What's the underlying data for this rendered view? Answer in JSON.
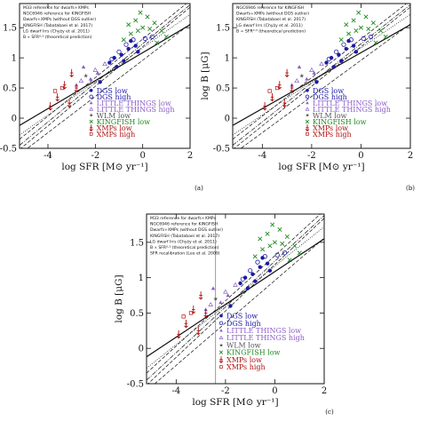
{
  "chart_data": [
    {
      "panel": "(a)",
      "type": "scatter",
      "xlabel": "log SFR [M⊙ yr⁻¹]",
      "ylabel": "",
      "xlim": [
        -5.2,
        2.0
      ],
      "ylim": [
        -0.5,
        1.9
      ],
      "xticks": [
        -4,
        -2,
        0,
        2
      ],
      "yticks": [
        -0.5,
        0,
        0.5,
        1,
        1.5
      ],
      "ref_lines": [
        {
          "name": "M33 reference for dwarfs+XMPs",
          "style": "dashed",
          "x": [
            -5.2,
            2.0
          ],
          "y": [
            -0.35,
            1.95
          ]
        },
        {
          "name": "NGC6946 reference for KINGFISH",
          "style": "dashed",
          "x": [
            -5.2,
            2.0
          ],
          "y": [
            -0.52,
            1.84
          ]
        },
        {
          "name": "Dwarfs+XMPs (without DGS outlier)",
          "style": "solid",
          "x": [
            -5.2,
            2.0
          ],
          "y": [
            -0.12,
            1.55
          ]
        },
        {
          "name": "KINGFISH (Tabatabaei et al. 2017)",
          "style": "dotted",
          "x": [
            -5.2,
            2.0
          ],
          "y": [
            -0.28,
            1.72
          ]
        },
        {
          "name": "LG dwarf Irrs (Chyży et al. 2011)",
          "style": "dashdot",
          "x": [
            -5.2,
            2.0
          ],
          "y": [
            -0.45,
            1.88
          ]
        },
        {
          "name": "B ∝ SFR⁰·³ (theoretical prediction)",
          "style": "dashed",
          "x": [
            -5.2,
            2.0
          ],
          "y": [
            -0.6,
            1.56
          ]
        }
      ],
      "series": [
        {
          "name": "DGS low",
          "color": "#1a1aa6",
          "marker": "filled-circle",
          "points": [
            [
              -1.4,
              0.92
            ],
            [
              -1.2,
              1.0
            ],
            [
              -0.9,
              1.05
            ],
            [
              -1.1,
              0.85
            ],
            [
              -0.6,
              1.15
            ],
            [
              -0.3,
              1.2
            ],
            [
              -0.5,
              1.28
            ],
            [
              -1.8,
              0.6
            ],
            [
              -0.2,
              1.1
            ],
            [
              -0.8,
              0.95
            ]
          ]
        },
        {
          "name": "DGS high",
          "color": "#1a1aa6",
          "marker": "open-circle",
          "points": [
            [
              -1.0,
              1.1
            ],
            [
              -0.7,
              1.22
            ],
            [
              -0.4,
              1.3
            ],
            [
              0.1,
              1.32
            ],
            [
              -1.3,
              0.98
            ],
            [
              0.4,
              1.35
            ]
          ]
        },
        {
          "name": "LITTLE THINGS low",
          "color": "#8a5cc7",
          "marker": "filled-triangle",
          "points": [
            [
              -2.2,
              0.65
            ],
            [
              -2.8,
              0.55
            ],
            [
              -1.9,
              0.75
            ],
            [
              -2.5,
              0.85
            ]
          ]
        },
        {
          "name": "LITTLE THINGS high",
          "color": "#8a5cc7",
          "marker": "open-triangle",
          "points": [
            [
              -2.0,
              0.8
            ],
            [
              -2.6,
              0.62
            ],
            [
              -1.6,
              0.9
            ]
          ]
        },
        {
          "name": "WLM low",
          "color": "#555555",
          "marker": "star",
          "points": [
            [
              -2.4,
              0.7
            ]
          ]
        },
        {
          "name": "KINGFISH low",
          "color": "#1f8a1f",
          "marker": "cross",
          "points": [
            [
              -0.6,
              1.55
            ],
            [
              -0.3,
              1.62
            ],
            [
              0.0,
              1.5
            ],
            [
              0.3,
              1.48
            ],
            [
              -0.8,
              1.3
            ],
            [
              0.5,
              1.58
            ],
            [
              0.8,
              1.45
            ],
            [
              -0.1,
              1.75
            ],
            [
              0.2,
              1.68
            ],
            [
              -0.5,
              1.4
            ],
            [
              1.0,
              1.35
            ],
            [
              0.6,
              1.25
            ],
            [
              -0.2,
              1.45
            ]
          ]
        },
        {
          "name": "XMPs low",
          "color": "#b01010",
          "marker": "upper-limit",
          "points": [
            [
              -3.6,
              0.35
            ],
            [
              -3.3,
              0.55
            ],
            [
              -3.0,
              0.75
            ],
            [
              -2.8,
              0.5
            ],
            [
              -3.9,
              0.2
            ],
            [
              -3.1,
              0.25
            ]
          ]
        },
        {
          "name": "XMPs high",
          "color": "#b01010",
          "marker": "open-square",
          "points": [
            [
              -3.4,
              0.5
            ],
            [
              -3.7,
              0.45
            ]
          ]
        }
      ],
      "legend": "bottom-right"
    },
    {
      "panel": "(b)",
      "type": "scatter",
      "xlabel": "log SFR [M⊙ yr⁻¹]",
      "ylabel": "log B [μG]",
      "xlim": [
        -5.2,
        2.0
      ],
      "ylim": [
        -0.5,
        1.9
      ],
      "xticks": [
        -4,
        -2,
        0,
        2
      ],
      "yticks": [
        -0.5,
        0,
        0.5,
        1,
        1.5
      ],
      "legend": "bottom-right"
    },
    {
      "panel": "(c)",
      "type": "scatter",
      "xlabel": "log SFR [M⊙ yr⁻¹]",
      "ylabel": "log B [μG]",
      "xlim": [
        -5.2,
        2.0
      ],
      "ylim": [
        -0.5,
        1.9
      ],
      "xticks": [
        -4,
        -2,
        0,
        2
      ],
      "yticks": [
        -0.5,
        0,
        0.5,
        1,
        1.5
      ],
      "legend": "bottom-right"
    }
  ],
  "figure": {
    "legends": {
      "a": {
        "lines": [
          "M33 reference for dwarfs+XMPs",
          "NGC6946 reference for KINGFISH",
          "Dwarfs+XMPs (without DGS outlier)",
          "KINGFISH (Tabatabaei et al. 2017)",
          "LG dwarf Irrs (Chyży et al. 2011)",
          "B ∝ SFR⁰·³ (theoretical prediction)"
        ],
        "markers": [
          "DGS low",
          "DGS high",
          "LITTLE THINGS low",
          "LITTLE THINGS high",
          "WLM low",
          "KINGFISH low",
          "XMPs low",
          "XMPs high"
        ]
      },
      "b": {
        "lines": [
          "NGC6946 reference for KINGFISH",
          "Dwarfs+XMPs (without DGS outlier)",
          "KINGFISH (Tabatabaei et al. 2017)",
          "LG dwarf Irrs (Chyży et al. 2011)",
          "B = SFR⁰·³ (theoretical prediction)"
        ],
        "markers": [
          "DGS low",
          "DGS high",
          "LITTLE THINGS low",
          "LITTLE THINGS high",
          "WLM low",
          "KINGFISH low",
          "XMPs low",
          "XMPs high"
        ]
      },
      "c": {
        "lines": [
          "M33 reference for dwarfs+XMPs",
          "NGC6946 reference for KINGFISH",
          "Dwarfs+XMPs (without DGS outlier)",
          "KINGFISH (Tabatabaei et al. 2017)",
          "LG dwarf Irrs (Chyży et al. 2011)",
          "B ∝ SFR⁰·³ (theoretical prediction)",
          "SFR recalibration (Lee et al. 2009)"
        ],
        "markers": [
          "DGS low",
          "DGS high",
          "LITTLE THINGS low",
          "LITTLE THINGS high",
          "WLM low",
          "KINGFISH low",
          "XMPs low",
          "XMPs high"
        ]
      }
    },
    "panel_labels": [
      "(a)",
      "(b)",
      "(c)"
    ]
  }
}
